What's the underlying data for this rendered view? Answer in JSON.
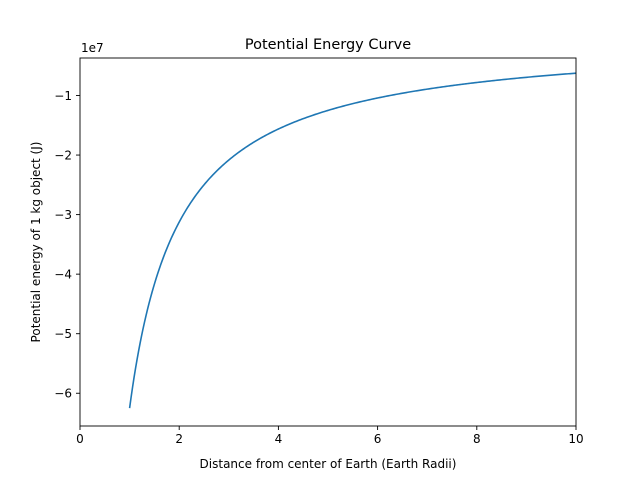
{
  "chart_data": {
    "type": "line",
    "title": "Potential Energy Curve",
    "xlabel": "Distance from center of Earth (Earth Radii)",
    "ylabel": "Potential energy of 1 kg object (J)",
    "offset_text": "1e7",
    "xlim": [
      0,
      10
    ],
    "ylim": [
      -6.55,
      -0.37
    ],
    "y_scale_factor": 10000000,
    "x_ticks": [
      0,
      2,
      4,
      6,
      8,
      10
    ],
    "x_tick_labels": [
      "0",
      "2",
      "4",
      "6",
      "8",
      "10"
    ],
    "y_ticks": [
      -6,
      -5,
      -4,
      -3,
      -2,
      -1
    ],
    "y_tick_labels": [
      "−6",
      "−5",
      "−4",
      "−3",
      "−2",
      "−1"
    ],
    "grid": false,
    "legend": false,
    "series": [
      {
        "color": "#1f77b4",
        "x": [
          1.0,
          1.25,
          1.5,
          1.75,
          2.0,
          2.5,
          3.0,
          3.5,
          4.0,
          5.0,
          6.0,
          7.0,
          8.0,
          9.0,
          10.0
        ],
        "y": [
          -6.25,
          -5.0,
          -4.17,
          -3.57,
          -3.125,
          -2.5,
          -2.08,
          -1.79,
          -1.5625,
          -1.25,
          -1.04,
          -0.89,
          -0.78,
          -0.69,
          -0.625
        ]
      }
    ]
  }
}
